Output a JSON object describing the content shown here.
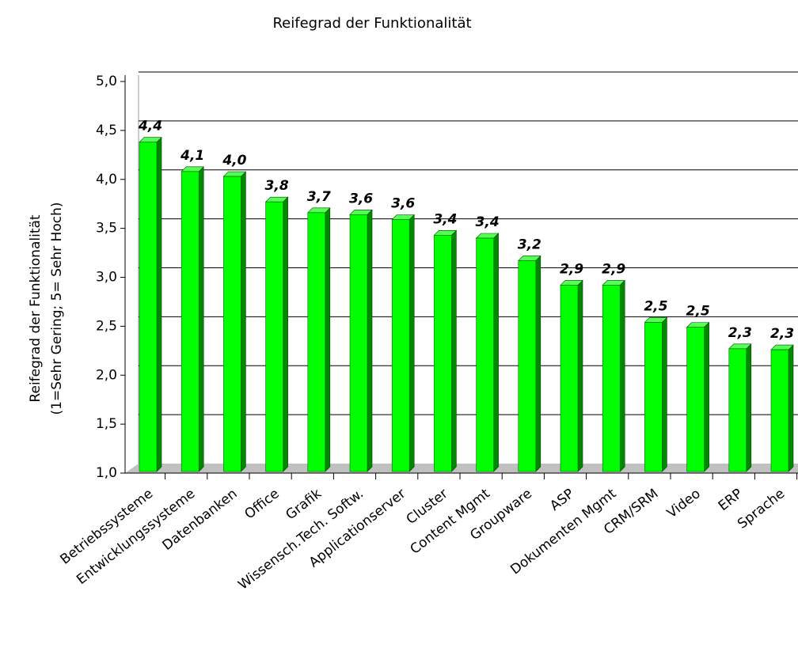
{
  "chart_data": {
    "type": "bar",
    "title": "Reifegrad der Funktionalität",
    "ylabel": [
      "Reifegrad der Funktionalität",
      "(1=Sehr Gering; 5= Sehr Hoch)"
    ],
    "categories": [
      "Betriebssysteme",
      "Entwicklungssysteme",
      "Datenbanken",
      "Office",
      "Grafik",
      "Wissensch.Tech. Softw.",
      "Applicationserver",
      "Cluster",
      "Content Mgmt",
      "Groupware",
      "ASP",
      "Dokumenten Mgmt",
      "CRM/SRM",
      "Video",
      "ERP",
      "Sprache"
    ],
    "values": [
      4.38,
      4.08,
      4.03,
      3.77,
      3.66,
      3.64,
      3.59,
      3.43,
      3.4,
      3.17,
      2.92,
      2.92,
      2.54,
      2.49,
      2.27,
      2.26
    ],
    "value_labels": [
      "4,4",
      "4,1",
      "4,0",
      "3,8",
      "3,7",
      "3,6",
      "3,6",
      "3,4",
      "3,4",
      "3,2",
      "2,9",
      "2,9",
      "2,5",
      "2,5",
      "2,3",
      "2,3"
    ],
    "color": "#00ff00",
    "ylim": [
      1,
      5
    ],
    "yticks": [
      {
        "value": 1,
        "label": "1,0"
      },
      {
        "value": 1.5,
        "label": "1,5"
      },
      {
        "value": 2,
        "label": "2,0"
      },
      {
        "value": 2.5,
        "label": "2,5"
      },
      {
        "value": 3,
        "label": "3,0"
      },
      {
        "value": 3.5,
        "label": "3,5"
      },
      {
        "value": 4,
        "label": "4,0"
      },
      {
        "value": 4.5,
        "label": "4,5"
      },
      {
        "value": 5,
        "label": "5,0"
      }
    ],
    "grid": true
  }
}
